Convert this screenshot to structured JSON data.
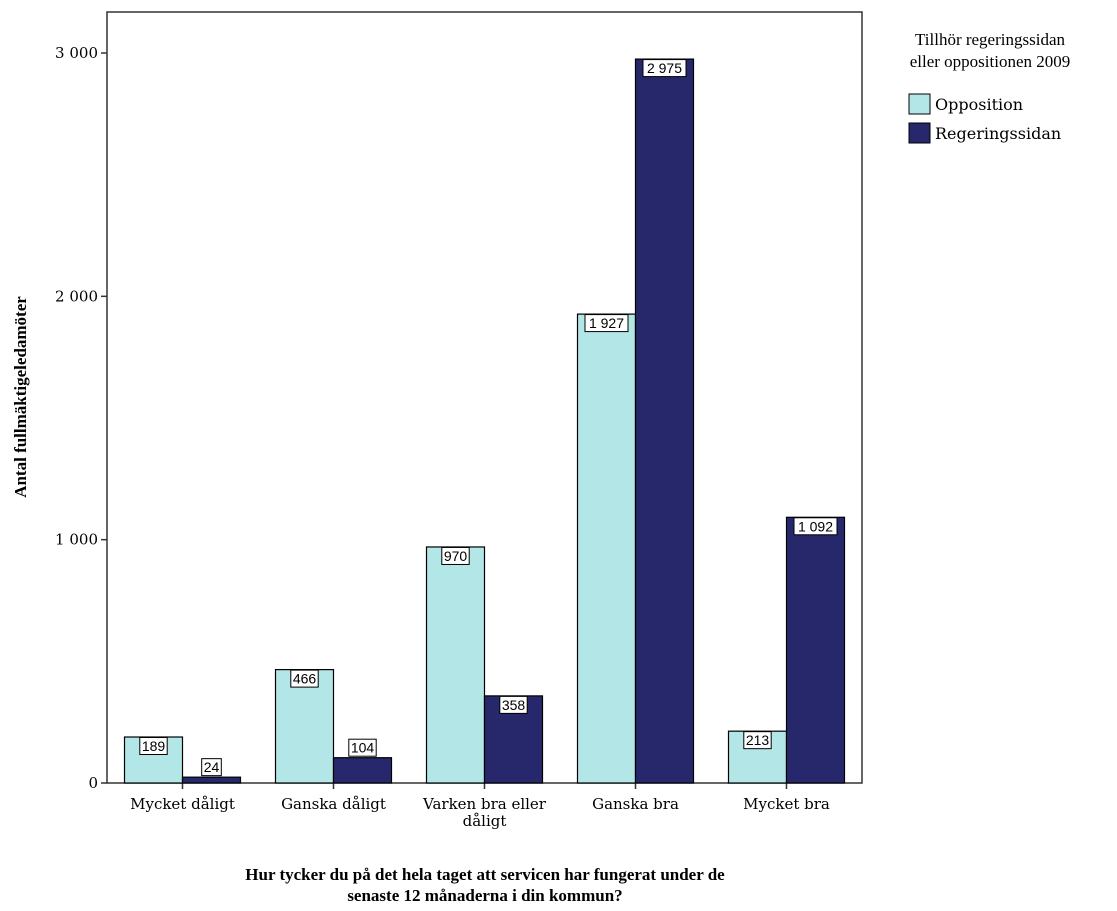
{
  "chart_data": {
    "type": "bar",
    "categories": [
      "Mycket dåligt",
      "Ganska dåligt",
      "Varken bra eller dåligt",
      "Ganska bra",
      "Mycket bra"
    ],
    "series": [
      {
        "name": "Opposition",
        "values": [
          189,
          466,
          970,
          1927,
          213
        ],
        "labels": [
          "189",
          "466",
          "970",
          "1 927",
          "213"
        ],
        "color": "#b3e6e7"
      },
      {
        "name": "Regeringssidan",
        "values": [
          24,
          104,
          358,
          2975,
          1092
        ],
        "labels": [
          "24",
          "104",
          "358",
          "2 975",
          "1 092"
        ],
        "color": "#26286b"
      }
    ],
    "xlabel": "Hur tycker du på det hela taget att servicen har fungerat under de senaste 12 månaderna i din kommun?",
    "xlabel_lines": [
      "Hur tycker du på det hela taget att servicen har fungerat under de",
      "senaste 12 månaderna i din kommun?"
    ],
    "ylabel": "Antal fullmäktigeledamöter",
    "ylim": [
      0,
      3200
    ],
    "yticks": [
      0,
      1000,
      2000,
      3000
    ],
    "ytick_labels": [
      "0",
      "1 000",
      "2 000",
      "3 000"
    ],
    "legend_title_lines": [
      "Tillhör regeringssidan",
      "eller oppositionen 2009"
    ],
    "legend_position": "top-right",
    "grid": false
  }
}
